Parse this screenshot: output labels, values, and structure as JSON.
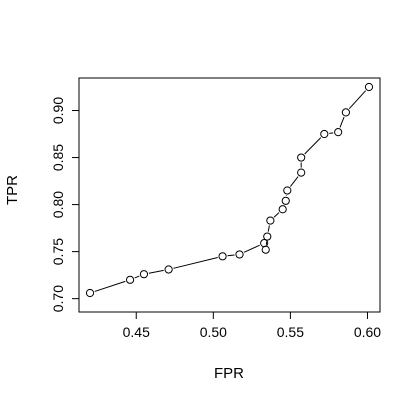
{
  "chart_data": {
    "type": "line",
    "title": "",
    "xlabel": "FPR",
    "ylabel": "TPR",
    "xlim": [
      0.42,
      0.601
    ],
    "ylim": [
      0.706,
      0.925
    ],
    "xticks": [
      "0.45",
      "0.50",
      "0.55",
      "0.60"
    ],
    "xtick_values": [
      0.45,
      0.5,
      0.55,
      0.6
    ],
    "yticks": [
      "0.70",
      "0.75",
      "0.80",
      "0.85",
      "0.90"
    ],
    "ytick_values": [
      0.7,
      0.75,
      0.8,
      0.85,
      0.9
    ],
    "grid": false,
    "markers": "open-circle",
    "series": [
      {
        "color": "#000000",
        "x": [
          0.42,
          0.446,
          0.455,
          0.471,
          0.506,
          0.517,
          0.533,
          0.534,
          0.535,
          0.537,
          0.545,
          0.547,
          0.548,
          0.557,
          0.557,
          0.572,
          0.581,
          0.586,
          0.601
        ],
        "y": [
          0.706,
          0.72,
          0.726,
          0.731,
          0.745,
          0.747,
          0.759,
          0.752,
          0.766,
          0.783,
          0.795,
          0.804,
          0.815,
          0.834,
          0.85,
          0.875,
          0.877,
          0.898,
          0.925
        ]
      }
    ]
  }
}
